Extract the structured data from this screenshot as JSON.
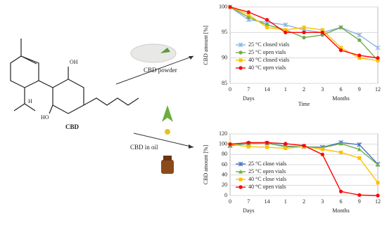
{
  "labels": {
    "molecule": "CBD",
    "oh_top": "OH",
    "oh_bottom": "HO",
    "h": "H",
    "powder": "CBD powder",
    "oil": "CBD in oil"
  },
  "chart_data": [
    {
      "type": "line",
      "y_label": "CBD amount [%]",
      "x_label": "Time",
      "x_groups": [
        "Days",
        "Months"
      ],
      "categories": [
        "0",
        "7",
        "14",
        "1",
        "2",
        "3",
        "6",
        "9",
        "12"
      ],
      "ylim": [
        85,
        100
      ],
      "yticks": [
        85,
        90,
        95,
        100
      ],
      "legend": "lower-left",
      "series": [
        {
          "name": "25 °C closed vials",
          "color": "#8db4e2",
          "marker": "x",
          "values": [
            100,
            97.5,
            97,
            96.5,
            95.5,
            95,
            96,
            94.5,
            92
          ]
        },
        {
          "name": "25 °C open vials",
          "color": "#70ad47",
          "marker": "circle",
          "values": [
            100,
            98,
            96.5,
            95.5,
            94,
            94.5,
            96,
            93.5,
            89.5
          ]
        },
        {
          "name": "40 °C closed vials",
          "color": "#ffc000",
          "marker": "square",
          "values": [
            100,
            98.5,
            96,
            95.5,
            96,
            95.5,
            92,
            90,
            89.5
          ]
        },
        {
          "name": "40 °C open vials",
          "color": "#ff0000",
          "marker": "circle",
          "values": [
            100,
            99,
            97.5,
            95,
            95,
            95,
            91.5,
            90.5,
            90
          ]
        }
      ]
    },
    {
      "type": "line",
      "y_label": "CBD amount [%]",
      "x_groups": [
        "Days",
        "Months"
      ],
      "categories": [
        "0",
        "7",
        "14",
        "1",
        "2",
        "3",
        "6",
        "9",
        "12"
      ],
      "ylim": [
        0,
        120
      ],
      "yticks": [
        0,
        20,
        40,
        60,
        80,
        100,
        120
      ],
      "legend": "lower-left",
      "series": [
        {
          "name": "25 °C close vials",
          "color": "#4472c4",
          "marker": "x",
          "values": [
            97,
            101,
            102,
            96,
            95,
            94,
            103,
            99,
            61
          ]
        },
        {
          "name": "25 °C open vials",
          "color": "#70ad47",
          "marker": "triangle",
          "values": [
            98,
            101,
            102,
            95,
            95,
            93,
            101,
            90,
            60
          ]
        },
        {
          "name": "40 °C close vials",
          "color": "#ffc000",
          "marker": "square",
          "values": [
            100,
            95,
            94,
            92,
            95,
            90,
            84,
            73,
            25
          ]
        },
        {
          "name": "40 °C open vials",
          "color": "#ff0000",
          "marker": "circle",
          "values": [
            100,
            103,
            103,
            101,
            97,
            80,
            8,
            1,
            0
          ]
        }
      ]
    }
  ]
}
